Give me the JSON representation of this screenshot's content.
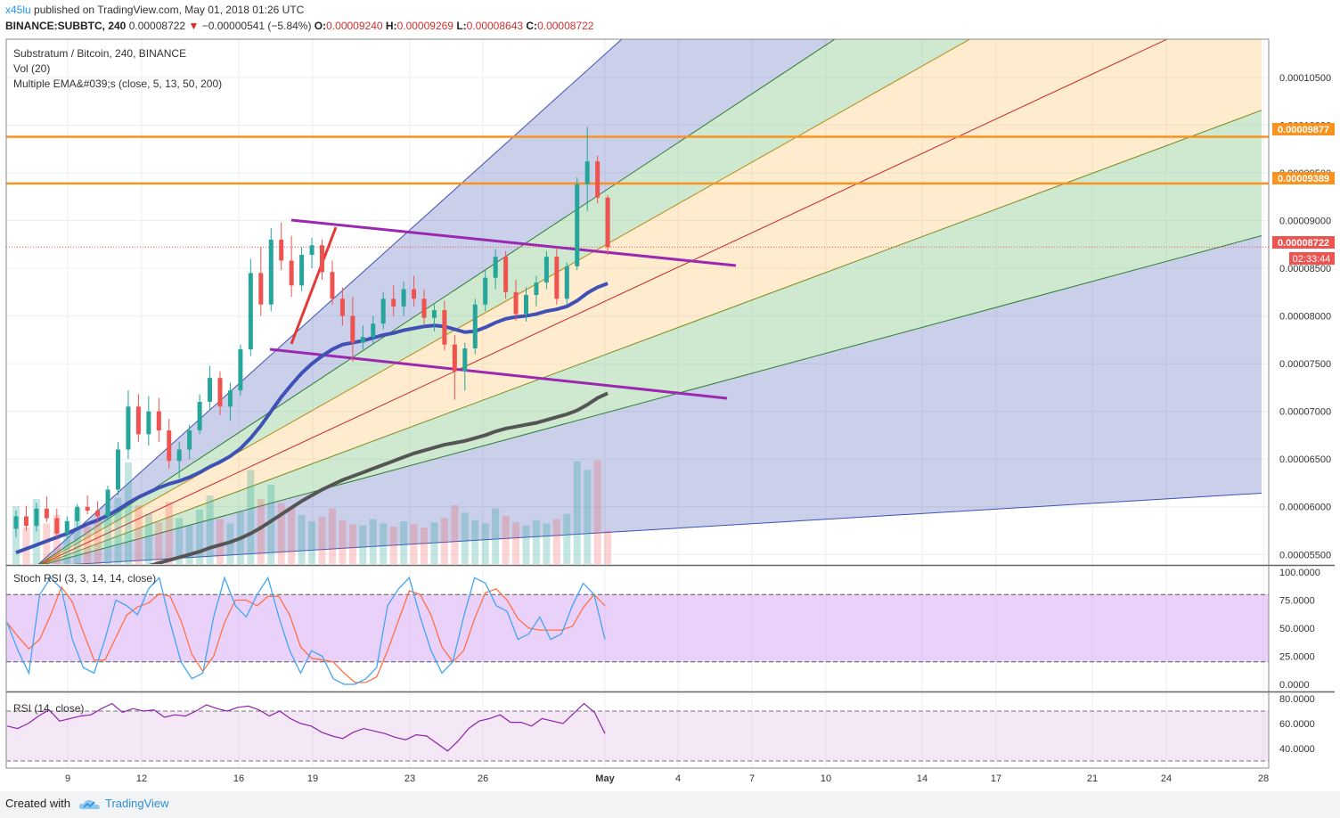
{
  "header": {
    "author": "x45lu",
    "published": "published on TradingView.com, May 01, 2018 01:26 UTC",
    "symbol": "BINANCE:SUBBTC, 240",
    "price": "0.00008722",
    "change": "−0.00000541 (−5.84%)",
    "open_label": "O:",
    "open": "0.00009240",
    "high_label": "H:",
    "high": "0.00009269",
    "low_label": "L:",
    "low": "0.00008643",
    "close_label": "C:",
    "close": "0.00008722"
  },
  "legend": {
    "title": "Substratum / Bitcoin, 240, BINANCE",
    "vol": "Vol (20)",
    "ema": "Multiple EMA&#039;s (close, 5, 13, 50, 200)",
    "stoch": "Stoch RSI (3, 3, 14, 14, close)",
    "rsi": "RSI (14, close)"
  },
  "price_badges": {
    "res1": "0.00009877",
    "res2": "0.00009389",
    "last": "0.00008722",
    "timer": "02:33:44"
  },
  "colors": {
    "up": "#26a69a",
    "down": "#ef5350",
    "orange": "#f7931e",
    "purple": "#9c27b0",
    "ema50": "#3f51b5",
    "ema200": "#555555"
  },
  "footer": {
    "created": "Created with",
    "brand": "TradingView"
  },
  "chart_data": {
    "type": "candlestick",
    "title": "Substratum / Bitcoin, 240, BINANCE",
    "price_axis": {
      "ylim": [
        5.4e-05,
        0.000109
      ],
      "ticks": [
        "0.00005500",
        "0.00006000",
        "0.00006500",
        "0.00007000",
        "0.00007500",
        "0.00008000",
        "0.00008500",
        "0.00009000",
        "0.00009500",
        "0.00010000",
        "0.00010500"
      ]
    },
    "x_ticks": [
      "9",
      "12",
      "16",
      "19",
      "23",
      "26",
      "May",
      "4",
      "7",
      "10",
      "14",
      "17",
      "21",
      "24",
      "28"
    ],
    "horizontal_levels": [
      9.877e-05,
      9.389e-05
    ],
    "last_price": 8.722e-05,
    "candles": [
      [
        5.77e-05,
        5.96e-05,
        5.68e-05,
        5.9e-05
      ],
      [
        5.9e-05,
        6.01e-05,
        5.75e-05,
        5.8e-05
      ],
      [
        5.8e-05,
        6.04e-05,
        5.74e-05,
        5.98e-05
      ],
      [
        5.98e-05,
        6.11e-05,
        5.84e-05,
        5.88e-05
      ],
      [
        5.88e-05,
        5.98e-05,
        5.68e-05,
        5.72e-05
      ],
      [
        5.72e-05,
        5.9e-05,
        5.66e-05,
        5.85e-05
      ],
      [
        5.85e-05,
        6.03e-05,
        5.78e-05,
        6e-05
      ],
      [
        6e-05,
        6.12e-05,
        5.92e-05,
        5.96e-05
      ],
      [
        5.96e-05,
        6.06e-05,
        5.85e-05,
        5.9e-05
      ],
      [
        5.9e-05,
        6.22e-05,
        5.86e-05,
        6.18e-05
      ],
      [
        6.18e-05,
        6.68e-05,
        6.12e-05,
        6.6e-05
      ],
      [
        6.6e-05,
        7.22e-05,
        6.5e-05,
        7.05e-05
      ],
      [
        7.05e-05,
        7.18e-05,
        6.68e-05,
        6.76e-05
      ],
      [
        6.76e-05,
        7.16e-05,
        6.64e-05,
        7e-05
      ],
      [
        7e-05,
        7.14e-05,
        6.68e-05,
        6.8e-05
      ],
      [
        6.8e-05,
        6.92e-05,
        6.4e-05,
        6.48e-05
      ],
      [
        6.48e-05,
        6.68e-05,
        6.3e-05,
        6.6e-05
      ],
      [
        6.6e-05,
        6.86e-05,
        6.5e-05,
        6.8e-05
      ],
      [
        6.8e-05,
        7.18e-05,
        6.76e-05,
        7.1e-05
      ],
      [
        7.1e-05,
        7.48e-05,
        7.02e-05,
        7.35e-05
      ],
      [
        7.35e-05,
        7.42e-05,
        6.96e-05,
        7.05e-05
      ],
      [
        7.05e-05,
        7.3e-05,
        6.9e-05,
        7.22e-05
      ],
      [
        7.22e-05,
        7.7e-05,
        7.16e-05,
        7.65e-05
      ],
      [
        7.65e-05,
        8.6e-05,
        7.58e-05,
        8.45e-05
      ],
      [
        8.45e-05,
        8.72e-05,
        8e-05,
        8.12e-05
      ],
      [
        8.12e-05,
        8.92e-05,
        8.05e-05,
        8.8e-05
      ],
      [
        8.8e-05,
        8.98e-05,
        8.48e-05,
        8.58e-05
      ],
      [
        8.58e-05,
        8.84e-05,
        8.2e-05,
        8.32e-05
      ],
      [
        8.32e-05,
        8.72e-05,
        8.26e-05,
        8.64e-05
      ],
      [
        8.64e-05,
        8.82e-05,
        8.5e-05,
        8.74e-05
      ],
      [
        8.74e-05,
        8.8e-05,
        8.38e-05,
        8.46e-05
      ],
      [
        8.46e-05,
        8.58e-05,
        8.12e-05,
        8.18e-05
      ],
      [
        8.18e-05,
        8.3e-05,
        7.9e-05,
        8e-05
      ],
      [
        8e-05,
        8.2e-05,
        7.52e-05,
        7.72e-05
      ],
      [
        7.72e-05,
        7.9e-05,
        7.65e-05,
        7.78e-05
      ],
      [
        7.78e-05,
        8e-05,
        7.7e-05,
        7.92e-05
      ],
      [
        7.92e-05,
        8.25e-05,
        7.86e-05,
        8.18e-05
      ],
      [
        8.18e-05,
        8.32e-05,
        8e-05,
        8.1e-05
      ],
      [
        8.1e-05,
        8.36e-05,
        8e-05,
        8.28e-05
      ],
      [
        8.28e-05,
        8.42e-05,
        8.1e-05,
        8.18e-05
      ],
      [
        8.18e-05,
        8.28e-05,
        7.9e-05,
        7.98e-05
      ],
      [
        7.98e-05,
        8.12e-05,
        7.84e-05,
        8.06e-05
      ],
      [
        8.06e-05,
        8.16e-05,
        7.64e-05,
        7.7e-05
      ],
      [
        7.7e-05,
        7.8e-05,
        7.12e-05,
        7.42e-05
      ],
      [
        7.42e-05,
        7.72e-05,
        7.22e-05,
        7.66e-05
      ],
      [
        7.66e-05,
        8.18e-05,
        7.6e-05,
        8.12e-05
      ],
      [
        8.12e-05,
        8.48e-05,
        8.05e-05,
        8.4e-05
      ],
      [
        8.4e-05,
        8.7e-05,
        8.28e-05,
        8.62e-05
      ],
      [
        8.62e-05,
        8.68e-05,
        8.18e-05,
        8.25e-05
      ],
      [
        8.25e-05,
        8.38e-05,
        7.95e-05,
        8.02e-05
      ],
      [
        8.02e-05,
        8.3e-05,
        7.94e-05,
        8.22e-05
      ],
      [
        8.22e-05,
        8.42e-05,
        8.1e-05,
        8.35e-05
      ],
      [
        8.35e-05,
        8.68e-05,
        8.28e-05,
        8.62e-05
      ],
      [
        8.62e-05,
        8.72e-05,
        8.12e-05,
        8.18e-05
      ],
      [
        8.18e-05,
        8.56e-05,
        8.12e-05,
        8.52e-05
      ],
      [
        8.52e-05,
        9.45e-05,
        8.48e-05,
        9.38e-05
      ],
      [
        9.38e-05,
        9.98e-05,
        9.1e-05,
        9.62e-05
      ],
      [
        9.62e-05,
        9.68e-05,
        9.18e-05,
        9.24e-05
      ],
      [
        9.24e-05,
        9.27e-05,
        8.64e-05,
        8.72e-05
      ]
    ],
    "volume": [
      0.54,
      0.34,
      0.61,
      0.38,
      0.46,
      0.29,
      0.52,
      0.35,
      0.41,
      0.48,
      0.62,
      0.95,
      0.55,
      0.47,
      0.39,
      0.58,
      0.43,
      0.36,
      0.51,
      0.64,
      0.42,
      0.38,
      0.49,
      0.88,
      0.61,
      0.74,
      0.57,
      0.53,
      0.46,
      0.4,
      0.44,
      0.52,
      0.41,
      0.37,
      0.36,
      0.42,
      0.38,
      0.35,
      0.4,
      0.37,
      0.34,
      0.39,
      0.43,
      0.55,
      0.48,
      0.41,
      0.38,
      0.52,
      0.45,
      0.39,
      0.36,
      0.41,
      0.38,
      0.42,
      0.47,
      0.96,
      0.88,
      0.97,
      0.31
    ],
    "ema50": [
      5.52e-05,
      5.56e-05,
      5.6e-05,
      5.64e-05,
      5.68e-05,
      5.72e-05,
      5.77e-05,
      5.82e-05,
      5.86e-05,
      5.91e-05,
      5.97e-05,
      6.04e-05,
      6.1e-05,
      6.15e-05,
      6.2e-05,
      6.24e-05,
      6.27e-05,
      6.31e-05,
      6.36e-05,
      6.42e-05,
      6.47e-05,
      6.53e-05,
      6.61e-05,
      6.72e-05,
      6.85e-05,
      7e-05,
      7.15e-05,
      7.28e-05,
      7.4e-05,
      7.5e-05,
      7.58e-05,
      7.65e-05,
      7.7e-05,
      7.72e-05,
      7.74e-05,
      7.77e-05,
      7.8e-05,
      7.82e-05,
      7.85e-05,
      7.87e-05,
      7.89e-05,
      7.9e-05,
      7.89e-05,
      7.86e-05,
      7.83e-05,
      7.84e-05,
      7.88e-05,
      7.93e-05,
      7.97e-05,
      7.99e-05,
      8e-05,
      8.02e-05,
      8.05e-05,
      8.07e-05,
      8.1e-05,
      8.16e-05,
      8.24e-05,
      8.3e-05,
      8.34e-05
    ],
    "ema200": [
      5e-05,
      5.02e-05,
      5.04e-05,
      5.06e-05,
      5.08e-05,
      5.1e-05,
      5.13e-05,
      5.16e-05,
      5.19e-05,
      5.22e-05,
      5.26e-05,
      5.3e-05,
      5.34e-05,
      5.38e-05,
      5.41e-05,
      5.44e-05,
      5.47e-05,
      5.5e-05,
      5.53e-05,
      5.57e-05,
      5.6e-05,
      5.63e-05,
      5.67e-05,
      5.72e-05,
      5.78e-05,
      5.85e-05,
      5.92e-05,
      5.99e-05,
      6.06e-05,
      6.12e-05,
      6.18e-05,
      6.23e-05,
      6.28e-05,
      6.32e-05,
      6.36e-05,
      6.4e-05,
      6.44e-05,
      6.48e-05,
      6.52e-05,
      6.56e-05,
      6.59e-05,
      6.62e-05,
      6.65e-05,
      6.67e-05,
      6.69e-05,
      6.72e-05,
      6.75e-05,
      6.79e-05,
      6.82e-05,
      6.84e-05,
      6.86e-05,
      6.88e-05,
      6.91e-05,
      6.94e-05,
      6.97e-05,
      7.01e-05,
      7.07e-05,
      7.14e-05,
      7.19e-05
    ],
    "stoch_rsi": {
      "ticks": [
        "100.0000",
        "75.0000",
        "50.0000",
        "25.0000",
        "0.0000"
      ],
      "bands": [
        80,
        20
      ],
      "k": [
        55,
        30,
        10,
        80,
        95,
        85,
        40,
        15,
        10,
        40,
        75,
        70,
        62,
        85,
        95,
        55,
        20,
        5,
        10,
        60,
        95,
        70,
        60,
        80,
        95,
        60,
        30,
        10,
        30,
        25,
        5,
        0,
        0,
        5,
        15,
        70,
        85,
        95,
        60,
        30,
        10,
        20,
        60,
        95,
        90,
        70,
        65,
        40,
        45,
        60,
        40,
        45,
        70,
        90,
        80,
        40
      ]
    },
    "rsi": {
      "ticks": [
        "80.0000",
        "60.0000",
        "40.0000"
      ],
      "bands": [
        70,
        30
      ],
      "values": [
        58,
        56,
        60,
        66,
        71,
        62,
        64,
        66,
        67,
        72,
        76,
        69,
        72,
        70,
        71,
        65,
        67,
        66,
        70,
        75,
        72,
        70,
        73,
        74,
        71,
        66,
        70,
        64,
        60,
        58,
        53,
        50,
        48,
        53,
        56,
        54,
        52,
        49,
        47,
        51,
        50,
        44,
        38,
        46,
        56,
        62,
        64,
        67,
        61,
        61,
        58,
        64,
        62,
        60,
        68,
        76,
        69,
        52
      ]
    }
  }
}
